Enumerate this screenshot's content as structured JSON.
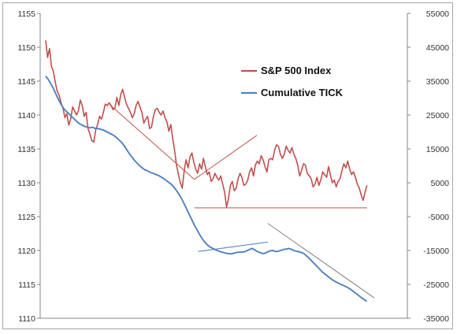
{
  "chart_data": {
    "type": "line",
    "title": "",
    "xlabel": "",
    "ylabel": "",
    "y_left": {
      "lim": [
        1110,
        1155
      ],
      "ticks": [
        "1110",
        "1115",
        "1120",
        "1125",
        "1130",
        "1135",
        "1140",
        "1145",
        "1150",
        "1155"
      ]
    },
    "y_right": {
      "lim": [
        -35000,
        55000
      ],
      "ticks": [
        "-35000",
        "-25000",
        "-15000",
        "-5000",
        "5000",
        "15000",
        "25000",
        "35000",
        "45000",
        "55000"
      ]
    },
    "grid": false,
    "legend_position": "upper-right (inside plot)",
    "series": [
      {
        "name": "S&P 500 Index",
        "axis": "left",
        "color": "#C0504D",
        "values": [
          1151.0,
          1148.5,
          1149.8,
          1147.2,
          1146.4,
          1144.8,
          1143.5,
          1142.9,
          1141.8,
          1141.0,
          1139.6,
          1140.2,
          1138.5,
          1139.4,
          1141.2,
          1140.6,
          1140.0,
          1140.6,
          1142.2,
          1141.4,
          1139.8,
          1140.4,
          1138.0,
          1137.2,
          1136.2,
          1136.0,
          1137.8,
          1138.6,
          1139.8,
          1139.4,
          1140.4,
          1141.6,
          1141.4,
          1141.8,
          1141.4,
          1140.8,
          1141.0,
          1142.6,
          1141.4,
          1143.0,
          1143.8,
          1142.6,
          1141.6,
          1141.0,
          1140.4,
          1139.6,
          1140.2,
          1141.4,
          1142.0,
          1141.2,
          1140.4,
          1138.8,
          1139.4,
          1139.8,
          1138.0,
          1138.2,
          1139.8,
          1140.8,
          1141.0,
          1140.4,
          1140.0,
          1140.6,
          1139.6,
          1139.0,
          1137.6,
          1138.6,
          1136.6,
          1134.8,
          1132.6,
          1131.2,
          1130.0,
          1129.2,
          1131.8,
          1133.4,
          1132.2,
          1133.8,
          1134.4,
          1133.0,
          1132.0,
          1131.4,
          1132.8,
          1132.0,
          1133.6,
          1132.4,
          1131.2,
          1131.6,
          1130.2,
          1130.6,
          1131.4,
          1130.8,
          1130.4,
          1131.0,
          1129.8,
          1128.6,
          1126.4,
          1127.6,
          1129.6,
          1130.2,
          1128.8,
          1129.2,
          1130.6,
          1131.4,
          1130.8,
          1129.6,
          1129.8,
          1130.4,
          1131.6,
          1132.2,
          1131.0,
          1132.6,
          1133.2,
          1132.8,
          1134.0,
          1133.4,
          1132.4,
          1131.6,
          1133.4,
          1133.6,
          1133.4,
          1134.8,
          1135.6,
          1135.4,
          1134.2,
          1133.6,
          1134.2,
          1135.4,
          1134.8,
          1134.4,
          1135.2,
          1134.2,
          1133.6,
          1132.6,
          1131.0,
          1131.8,
          1132.8,
          1132.6,
          1131.4,
          1131.0,
          1130.6,
          1129.4,
          1129.8,
          1130.8,
          1129.6,
          1130.4,
          1131.6,
          1131.2,
          1130.8,
          1132.4,
          1131.2,
          1130.0,
          1130.4,
          1129.4,
          1130.2,
          1130.6,
          1131.8,
          1132.8,
          1132.2,
          1133.2,
          1132.0,
          1131.2,
          1131.6,
          1130.8,
          1129.8,
          1129.2,
          1128.2,
          1127.4,
          1128.6,
          1129.6
        ]
      },
      {
        "name": "Cumulative TICK",
        "axis": "right",
        "color": "#4F81BD",
        "values": [
          36500,
          35500,
          34200,
          32800,
          31000,
          29400,
          28000,
          26800,
          26000,
          25300,
          24500,
          23800,
          23000,
          22400,
          22000,
          21600,
          21400,
          21200,
          21400,
          21000,
          21000,
          20800,
          20600,
          20200,
          19800,
          19400,
          19000,
          18400,
          17700,
          17000,
          16000,
          14800,
          13600,
          12600,
          11600,
          10800,
          10000,
          9400,
          8800,
          8500,
          8100,
          7800,
          7500,
          7200,
          6800,
          6300,
          5800,
          5200,
          4600,
          3800,
          2800,
          1600,
          300,
          -1200,
          -2800,
          -4400,
          -6000,
          -7600,
          -9000,
          -10400,
          -11600,
          -12600,
          -13400,
          -14000,
          -14400,
          -14800,
          -15100,
          -15400,
          -15600,
          -15800,
          -15900,
          -16000,
          -15800,
          -15600,
          -15500,
          -15500,
          -15400,
          -15100,
          -14700,
          -14400,
          -14800,
          -15300,
          -15600,
          -15900,
          -15800,
          -15400,
          -15100,
          -15000,
          -15300,
          -15200,
          -15000,
          -14700,
          -14600,
          -14400,
          -14600,
          -15000,
          -15200,
          -15400,
          -15600,
          -16000,
          -16700,
          -17400,
          -18200,
          -19000,
          -19800,
          -20600,
          -21400,
          -22000,
          -22600,
          -23200,
          -23800,
          -24200,
          -24600,
          -25000,
          -25300,
          -25700,
          -26100,
          -26600,
          -27200,
          -27800,
          -28400,
          -29000,
          -29500,
          -30000
        ]
      }
    ],
    "annotations": [
      {
        "name": "price-upper-trendline",
        "from": [
          0.19,
          1141.5
        ],
        "to": [
          0.42,
          1130.5
        ],
        "color": "#C0504D"
      },
      {
        "name": "price-rising-wedge-line",
        "from": [
          0.42,
          1130.5
        ],
        "to": [
          0.59,
          1137.0
        ],
        "color": "#C0504D"
      },
      {
        "name": "price-support-line",
        "from": [
          0.42,
          1126.3
        ],
        "to": [
          0.89,
          1126.3
        ],
        "color": "#C0504D"
      },
      {
        "name": "tick-support-line",
        "from": [
          0.43,
          -15300
        ],
        "to": [
          0.62,
          -12500
        ],
        "color": "#4F81BD"
      },
      {
        "name": "tick-descending-line",
        "from": [
          0.62,
          -7000
        ],
        "to": [
          0.91,
          -29000
        ],
        "color": "#7F7F7F"
      }
    ]
  },
  "legend": {
    "items": [
      {
        "label": "S&P 500 Index",
        "color": "#C0504D"
      },
      {
        "label": "Cumulative TICK",
        "color": "#4F81BD"
      }
    ]
  }
}
